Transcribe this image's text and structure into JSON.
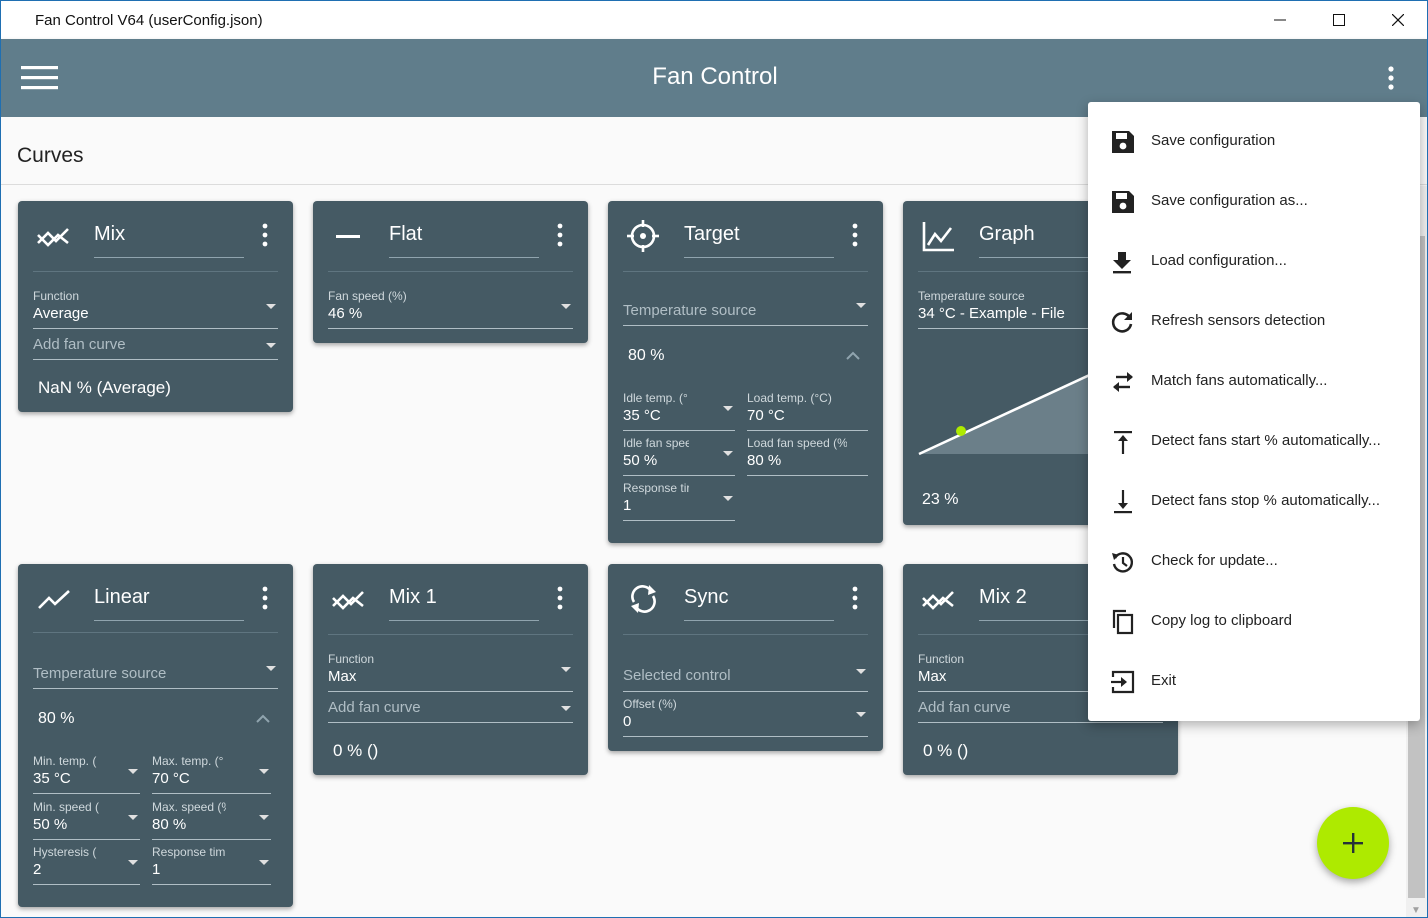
{
  "window": {
    "title": "Fan Control V64 (userConfig.json)"
  },
  "appbar": {
    "title": "Fan Control"
  },
  "section": {
    "title": "Curves"
  },
  "cards": {
    "mix": {
      "name": "Mix",
      "function_label": "Function",
      "function_value": "Average",
      "add_placeholder": "Add fan curve",
      "result": "NaN % (Average)"
    },
    "flat": {
      "name": "Flat",
      "speed_label": "Fan speed (%)",
      "speed_value": "46 %"
    },
    "target": {
      "name": "Target",
      "source_placeholder": "Temperature source",
      "value": "80 %",
      "idle_temp_label": "Idle temp. (°",
      "idle_temp_value": "35 °C",
      "load_temp_label": "Load temp. (°C)",
      "load_temp_value": "70 °C",
      "idle_speed_label": "Idle fan spee",
      "idle_speed_value": "50 %",
      "load_speed_label": "Load fan speed (%",
      "load_speed_value": "80 %",
      "response_label": "Response tir",
      "response_value": "1"
    },
    "graph": {
      "name": "Graph",
      "source_label": "Temperature source",
      "source_value": "34 °C - Example - File",
      "value": "23 %"
    },
    "linear": {
      "name": "Linear",
      "source_placeholder": "Temperature source",
      "value": "80 %",
      "min_temp_label": "Min. temp. (",
      "min_temp_value": "35 °C",
      "max_temp_label": "Max. temp. (°",
      "max_temp_value": "70 °C",
      "min_speed_label": "Min. speed (",
      "min_speed_value": "50 %",
      "max_speed_label": "Max. speed (%",
      "max_speed_value": "80 %",
      "hysteresis_label": "Hysteresis (",
      "hysteresis_value": "2",
      "response_label": "Response tim",
      "response_value": "1"
    },
    "mix1": {
      "name": "Mix 1",
      "function_label": "Function",
      "function_value": "Max",
      "add_placeholder": "Add fan curve",
      "result": "0 % ()"
    },
    "sync": {
      "name": "Sync",
      "control_placeholder": "Selected control",
      "offset_label": "Offset (%)",
      "offset_value": "0"
    },
    "mix2": {
      "name": "Mix 2",
      "function_label": "Function",
      "function_value": "Max",
      "add_placeholder": "Add fan curve",
      "result": "0 % ()"
    }
  },
  "menu": [
    {
      "label": "Save configuration",
      "icon": "save-icon"
    },
    {
      "label": "Save configuration as...",
      "icon": "save-as-icon"
    },
    {
      "label": "Load configuration...",
      "icon": "download-icon"
    },
    {
      "label": "Refresh sensors detection",
      "icon": "refresh-icon"
    },
    {
      "label": "Match fans automatically...",
      "icon": "swap-icon"
    },
    {
      "label": "Detect fans start % automatically...",
      "icon": "arrow-up-bar-icon"
    },
    {
      "label": "Detect fans stop % automatically...",
      "icon": "arrow-down-bar-icon"
    },
    {
      "label": "Check for update...",
      "icon": "history-icon"
    },
    {
      "label": "Copy log to clipboard",
      "icon": "copy-icon"
    },
    {
      "label": "Exit",
      "icon": "exit-icon"
    }
  ],
  "colors": {
    "appbar": "#607d8b",
    "card": "#455a64",
    "accent": "#aeea00"
  }
}
